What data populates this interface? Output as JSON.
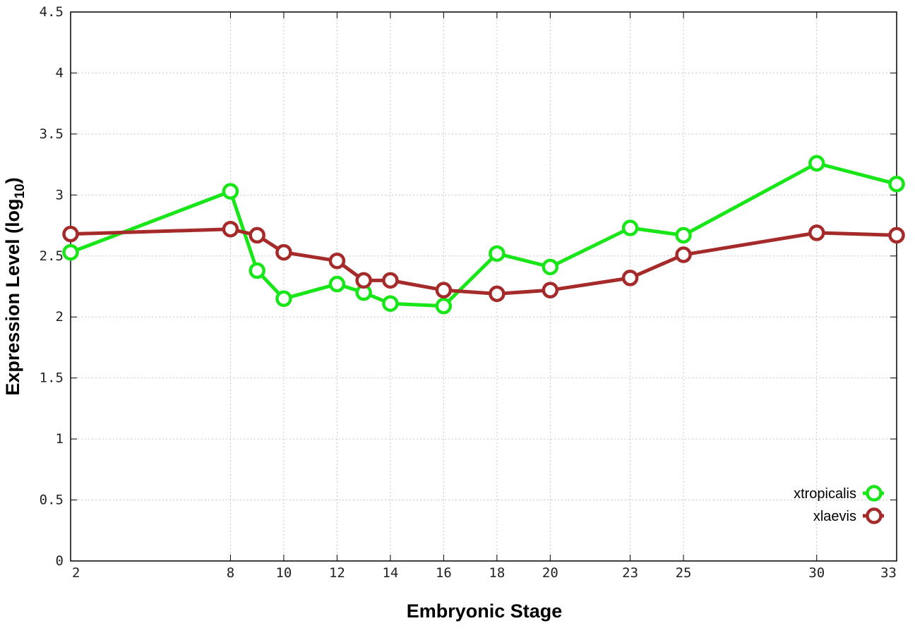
{
  "chart_data": {
    "type": "line",
    "title": "",
    "xlabel": "Embryonic Stage",
    "ylabel_main": "Expression Level (log",
    "ylabel_sub": "10",
    "ylabel_close": ")",
    "x_ticks": [
      2,
      8,
      10,
      12,
      14,
      16,
      18,
      20,
      23,
      25,
      30,
      33
    ],
    "x_tick_labels": [
      "2",
      "8",
      "10",
      "12",
      "14",
      "16",
      "18",
      "20",
      "23",
      "25",
      "30",
      "33"
    ],
    "y_ticks": [
      0,
      0.5,
      1,
      1.5,
      2,
      2.5,
      3,
      3.5,
      4,
      4.5
    ],
    "y_tick_labels": [
      "0",
      "0.5",
      "1",
      "1.5",
      "2",
      "2.5",
      "3",
      "3.5",
      "4",
      "4.5"
    ],
    "ylim": [
      0,
      4.5
    ],
    "x_note": "the x positions are categorical stages; spacing follows original plot",
    "categories": [
      "2",
      "8",
      "9",
      "10",
      "12",
      "13",
      "14",
      "16",
      "18",
      "20",
      "23",
      "25",
      "30",
      "33"
    ],
    "series": [
      {
        "name": "xtropicalis",
        "color": "#19e619",
        "values": [
          2.53,
          3.03,
          2.38,
          2.15,
          2.27,
          2.2,
          2.11,
          2.09,
          2.52,
          2.41,
          2.73,
          2.67,
          3.26,
          3.09
        ]
      },
      {
        "name": "xlaevis",
        "color": "#a52a2a",
        "values": [
          2.68,
          2.72,
          2.67,
          2.53,
          2.46,
          2.3,
          2.3,
          2.22,
          2.19,
          2.22,
          2.32,
          2.51,
          2.69,
          2.67
        ]
      }
    ],
    "grid": true,
    "legend_position": "bottom-right"
  }
}
